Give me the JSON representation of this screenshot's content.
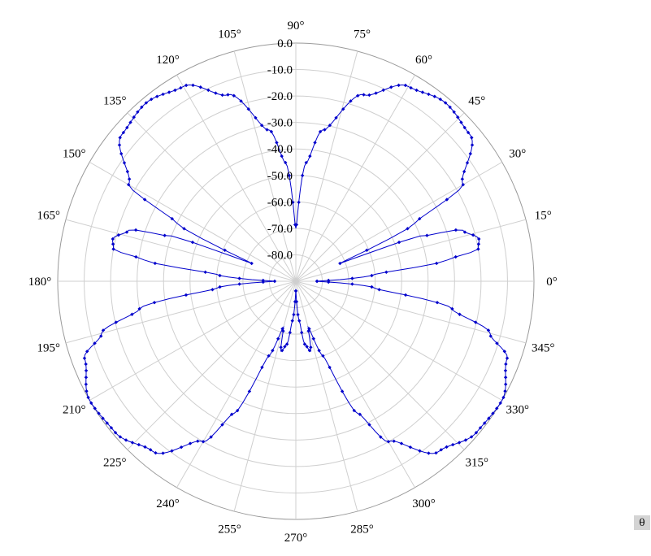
{
  "chart_data": {
    "type": "polar-line",
    "angle_unit": "degrees",
    "angle_ticks": [
      "0°",
      "15°",
      "30°",
      "45°",
      "60°",
      "75°",
      "90°",
      "105°",
      "120°",
      "135°",
      "150°",
      "165°",
      "180°",
      "195°",
      "210°",
      "225°",
      "240°",
      "255°",
      "270°",
      "285°",
      "300°",
      "315°",
      "330°",
      "345°"
    ],
    "radial_ticks": [
      "0.0",
      "-10.0",
      "-20.0",
      "-30.0",
      "-40.0",
      "-50.0",
      "-60.0",
      "-70.0",
      "-80.0"
    ],
    "rlim": [
      -90,
      0
    ],
    "grid": true,
    "series": [
      {
        "color": "#0000cc",
        "marker": "diamond",
        "points": [
          {
            "theta": 0,
            "r": -82
          },
          {
            "theta": 5,
            "r": -60
          },
          {
            "theta": 8,
            "r": -32
          },
          {
            "theta": 10,
            "r": -20
          },
          {
            "theta": 13,
            "r": -19
          },
          {
            "theta": 17,
            "r": -24
          },
          {
            "theta": 20,
            "r": -40
          },
          {
            "theta": 22,
            "r": -72
          },
          {
            "theta": 26,
            "r": -40
          },
          {
            "theta": 30,
            "r": -17
          },
          {
            "theta": 40,
            "r": -4
          },
          {
            "theta": 50,
            "r": -2
          },
          {
            "theta": 60,
            "r": -5
          },
          {
            "theta": 70,
            "r": -15
          },
          {
            "theta": 80,
            "r": -32
          },
          {
            "theta": 85,
            "r": -45
          },
          {
            "theta": 90,
            "r": -70
          },
          {
            "theta": 95,
            "r": -45
          },
          {
            "theta": 100,
            "r": -32
          },
          {
            "theta": 110,
            "r": -15
          },
          {
            "theta": 120,
            "r": -5
          },
          {
            "theta": 130,
            "r": -2
          },
          {
            "theta": 140,
            "r": -4
          },
          {
            "theta": 150,
            "r": -17
          },
          {
            "theta": 154,
            "r": -40
          },
          {
            "theta": 158,
            "r": -72
          },
          {
            "theta": 160,
            "r": -40
          },
          {
            "theta": 163,
            "r": -24
          },
          {
            "theta": 167,
            "r": -19
          },
          {
            "theta": 170,
            "r": -20
          },
          {
            "theta": 172,
            "r": -32
          },
          {
            "theta": 175,
            "r": -60
          },
          {
            "theta": 180,
            "r": -82
          },
          {
            "theta": 185,
            "r": -60
          },
          {
            "theta": 190,
            "r": -30
          },
          {
            "theta": 195,
            "r": -14
          },
          {
            "theta": 200,
            "r": -5
          },
          {
            "theta": 210,
            "r": 0
          },
          {
            "theta": 220,
            "r": -1
          },
          {
            "theta": 230,
            "r": -6
          },
          {
            "theta": 240,
            "r": -20
          },
          {
            "theta": 245,
            "r": -35
          },
          {
            "theta": 250,
            "r": -60
          },
          {
            "theta": 255,
            "r": -72
          },
          {
            "theta": 258,
            "r": -63
          },
          {
            "theta": 262,
            "r": -66
          },
          {
            "theta": 265,
            "r": -75
          },
          {
            "theta": 270,
            "r": -87
          },
          {
            "theta": 275,
            "r": -75
          },
          {
            "theta": 278,
            "r": -66
          },
          {
            "theta": 282,
            "r": -63
          },
          {
            "theta": 285,
            "r": -72
          },
          {
            "theta": 290,
            "r": -60
          },
          {
            "theta": 295,
            "r": -35
          },
          {
            "theta": 300,
            "r": -20
          },
          {
            "theta": 310,
            "r": -6
          },
          {
            "theta": 320,
            "r": -1
          },
          {
            "theta": 330,
            "r": 0
          },
          {
            "theta": 340,
            "r": -5
          },
          {
            "theta": 345,
            "r": -14
          },
          {
            "theta": 350,
            "r": -30
          },
          {
            "theta": 355,
            "r": -60
          },
          {
            "theta": 360,
            "r": -82
          }
        ]
      }
    ]
  },
  "controls": {
    "theta_button": "θ"
  }
}
